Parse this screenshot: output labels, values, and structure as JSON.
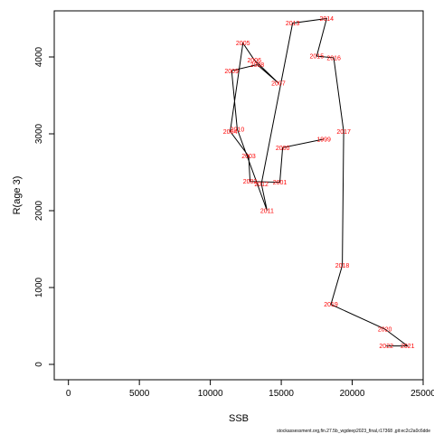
{
  "chart_data": {
    "type": "line",
    "title": "",
    "xlabel": "SSB",
    "ylabel": "R(age 3)",
    "xlim": [
      -1000,
      25000
    ],
    "ylim": [
      -200,
      4600
    ],
    "x_ticks": [
      0,
      5000,
      10000,
      15000,
      20000,
      25000
    ],
    "y_ticks": [
      0,
      1000,
      2000,
      3000,
      4000
    ],
    "grid": false,
    "series": [
      {
        "points": [
          {
            "year": "1999",
            "x": 18000,
            "y": 2930
          },
          {
            "year": "2000",
            "x": 15100,
            "y": 2820
          },
          {
            "year": "2001",
            "x": 14900,
            "y": 2370
          },
          {
            "year": "2002",
            "x": 12800,
            "y": 2380
          },
          {
            "year": "2003",
            "x": 12700,
            "y": 2710
          },
          {
            "year": "2004",
            "x": 11400,
            "y": 3030
          },
          {
            "year": "2005",
            "x": 12300,
            "y": 4180
          },
          {
            "year": "2006",
            "x": 13100,
            "y": 3960
          },
          {
            "year": "2007",
            "x": 14800,
            "y": 3660
          },
          {
            "year": "2008",
            "x": 13300,
            "y": 3900
          },
          {
            "year": "2009",
            "x": 11500,
            "y": 3820
          },
          {
            "year": "2010",
            "x": 11900,
            "y": 3060
          },
          {
            "year": "2011",
            "x": 14000,
            "y": 2000
          },
          {
            "year": "2012",
            "x": 13600,
            "y": 2350
          },
          {
            "year": "2013",
            "x": 15800,
            "y": 4440
          },
          {
            "year": "2014",
            "x": 18200,
            "y": 4500
          },
          {
            "year": "2015",
            "x": 17500,
            "y": 4010
          },
          {
            "year": "2016",
            "x": 18700,
            "y": 3990
          },
          {
            "year": "2017",
            "x": 19400,
            "y": 3030
          },
          {
            "year": "2018",
            "x": 19300,
            "y": 1290
          },
          {
            "year": "2019",
            "x": 18500,
            "y": 780
          },
          {
            "year": "2020",
            "x": 22300,
            "y": 460
          },
          {
            "year": "2021",
            "x": 23900,
            "y": 240
          },
          {
            "year": "2022",
            "x": 22400,
            "y": 240
          }
        ]
      }
    ],
    "credit": "stockassessment.org,fin.27.5b_wgdeep2023_final,r17368 ,git:ec2c2a0c6dde"
  }
}
